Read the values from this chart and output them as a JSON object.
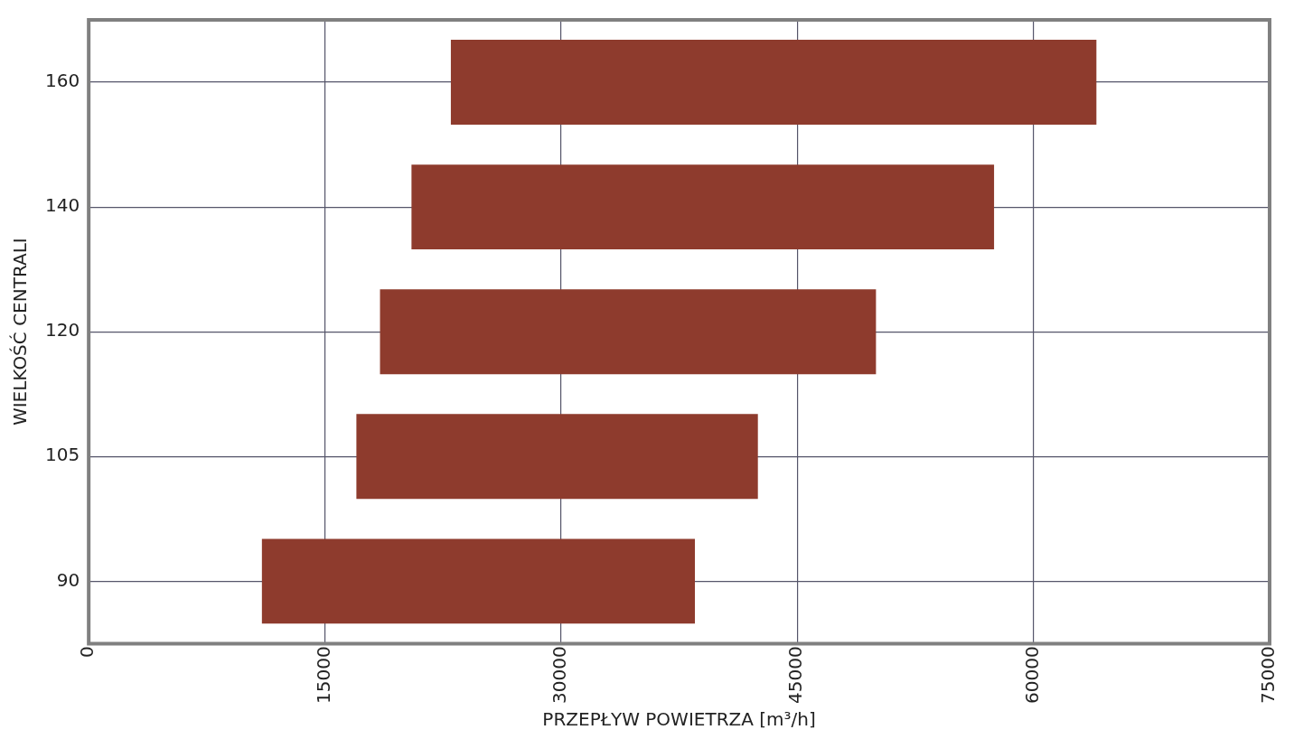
{
  "chart_data": {
    "type": "bar",
    "orientation": "horizontal",
    "categories": [
      "160",
      "140",
      "120",
      "105",
      "90"
    ],
    "base": [
      23000,
      20500,
      18500,
      17000,
      11000
    ],
    "values": [
      41000,
      37000,
      31500,
      25500,
      27500
    ],
    "color": "#8e3b2d",
    "xlabel": "PRZEPŁYW POWIETRZA [m³/h]",
    "ylabel": "WIELKOŚĆ CENTRALI",
    "xlim": [
      0,
      75000
    ],
    "xticks": [
      0,
      15000,
      30000,
      45000,
      60000,
      75000
    ],
    "grid": true,
    "legend": false
  }
}
